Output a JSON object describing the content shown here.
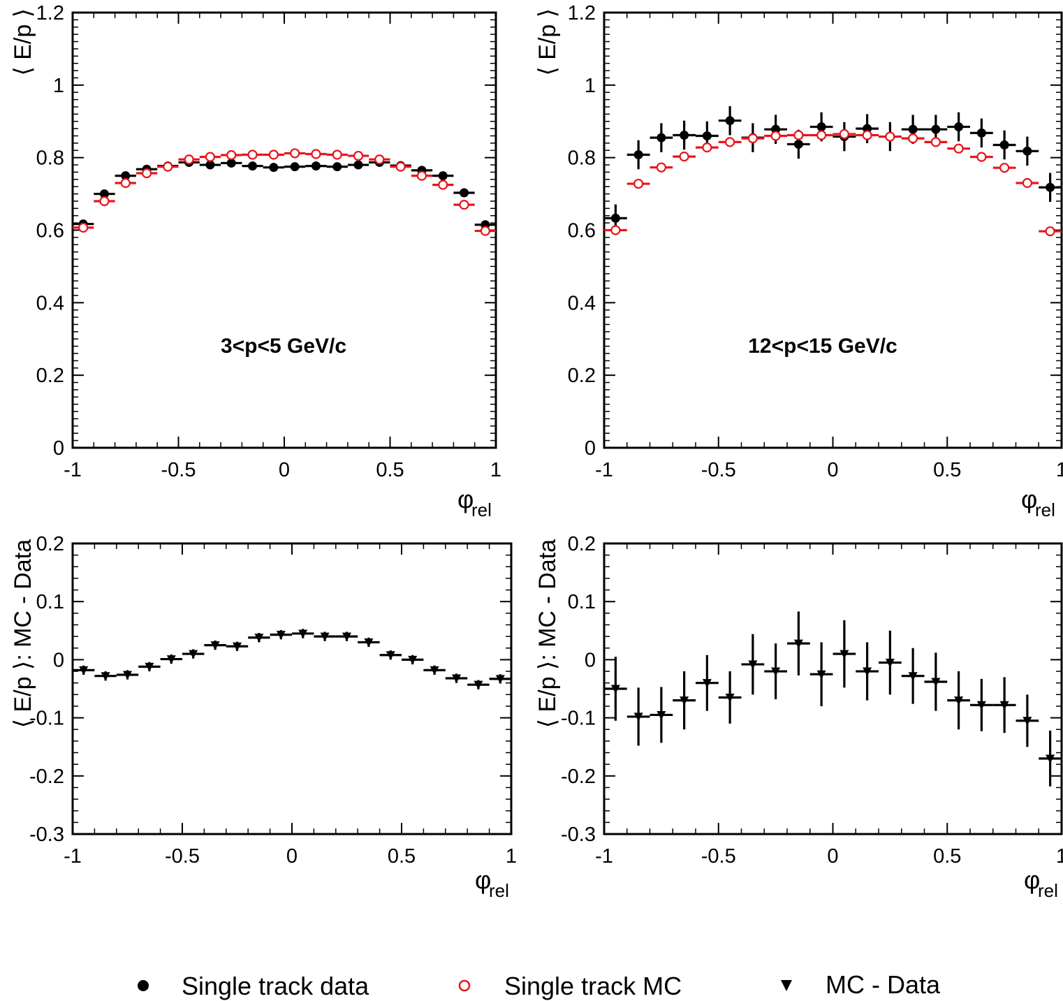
{
  "colors": {
    "data": "#000000",
    "mc": "#e8141c",
    "diff": "#000000"
  },
  "legend": [
    {
      "marker": "filled-circle",
      "label": "Single track data"
    },
    {
      "marker": "open-circle",
      "label": "Single track MC"
    },
    {
      "marker": "filled-triangle-down",
      "label": "MC - Data"
    }
  ],
  "chart_data": [
    {
      "type": "scatter",
      "panel": "top-left",
      "ylabel": "⟨ E/p ⟩",
      "xlabel": "φ",
      "xlabel_sub": "rel",
      "annotation": "3<p<5 GeV/c",
      "xlim": [
        -1,
        1
      ],
      "ylim": [
        0,
        1.2
      ],
      "xticks": [
        -1,
        -0.5,
        0,
        0.5,
        1
      ],
      "xtick_labels": [
        "-1",
        "-0.5",
        "0",
        "0.5",
        "1"
      ],
      "yticks": [
        0,
        0.2,
        0.4,
        0.6,
        0.8,
        1,
        1.2
      ],
      "ytick_labels": [
        "0",
        "0.2",
        "0.4",
        "0.6",
        "0.8",
        "1",
        "1.2"
      ],
      "x": [
        -0.95,
        -0.85,
        -0.75,
        -0.65,
        -0.55,
        -0.45,
        -0.35,
        -0.25,
        -0.15,
        -0.05,
        0.05,
        0.15,
        0.25,
        0.35,
        0.45,
        0.55,
        0.65,
        0.75,
        0.85,
        0.95
      ],
      "series": [
        {
          "marker": "filled-circle",
          "color": "#000000",
          "values": [
            0.617,
            0.7,
            0.75,
            0.768,
            0.777,
            0.787,
            0.78,
            0.785,
            0.777,
            0.773,
            0.775,
            0.777,
            0.775,
            0.78,
            0.787,
            0.778,
            0.765,
            0.75,
            0.703,
            0.615
          ],
          "errors": [
            0.005,
            0.005,
            0.005,
            0.005,
            0.005,
            0.005,
            0.005,
            0.005,
            0.005,
            0.005,
            0.005,
            0.005,
            0.005,
            0.005,
            0.005,
            0.005,
            0.005,
            0.005,
            0.005,
            0.005
          ]
        },
        {
          "marker": "open-circle",
          "color": "#e8141c",
          "values": [
            0.607,
            0.68,
            0.73,
            0.757,
            0.775,
            0.795,
            0.802,
            0.807,
            0.808,
            0.808,
            0.812,
            0.81,
            0.808,
            0.805,
            0.795,
            0.775,
            0.75,
            0.725,
            0.67,
            0.598
          ],
          "errors": [
            0.003,
            0.003,
            0.003,
            0.003,
            0.003,
            0.003,
            0.003,
            0.003,
            0.003,
            0.003,
            0.003,
            0.003,
            0.003,
            0.003,
            0.003,
            0.003,
            0.003,
            0.003,
            0.003,
            0.003
          ]
        }
      ]
    },
    {
      "type": "scatter",
      "panel": "top-right",
      "ylabel": "⟨ E/p ⟩",
      "xlabel": "φ",
      "xlabel_sub": "rel",
      "annotation": "12<p<15 GeV/c",
      "xlim": [
        -1,
        1
      ],
      "ylim": [
        0,
        1.2
      ],
      "xticks": [
        -1,
        -0.5,
        0,
        0.5,
        1
      ],
      "xtick_labels": [
        "-1",
        "-0.5",
        "0",
        "0.5",
        "1"
      ],
      "yticks": [
        0,
        0.2,
        0.4,
        0.6,
        0.8,
        1,
        1.2
      ],
      "ytick_labels": [
        "0",
        "0.2",
        "0.4",
        "0.6",
        "0.8",
        "1",
        "1.2"
      ],
      "x": [
        -0.95,
        -0.85,
        -0.75,
        -0.65,
        -0.55,
        -0.45,
        -0.35,
        -0.25,
        -0.15,
        -0.05,
        0.05,
        0.15,
        0.25,
        0.35,
        0.45,
        0.55,
        0.65,
        0.75,
        0.85,
        0.95
      ],
      "series": [
        {
          "marker": "filled-circle",
          "color": "#000000",
          "values": [
            0.633,
            0.808,
            0.855,
            0.862,
            0.86,
            0.902,
            0.855,
            0.878,
            0.837,
            0.885,
            0.858,
            0.88,
            0.858,
            0.878,
            0.878,
            0.885,
            0.868,
            0.835,
            0.818,
            0.718
          ],
          "errors": [
            0.038,
            0.04,
            0.04,
            0.04,
            0.04,
            0.04,
            0.04,
            0.04,
            0.04,
            0.04,
            0.04,
            0.04,
            0.04,
            0.04,
            0.04,
            0.04,
            0.04,
            0.04,
            0.04,
            0.04
          ]
        },
        {
          "marker": "open-circle",
          "color": "#e8141c",
          "values": [
            0.6,
            0.728,
            0.773,
            0.803,
            0.828,
            0.843,
            0.853,
            0.86,
            0.862,
            0.862,
            0.865,
            0.862,
            0.858,
            0.853,
            0.843,
            0.825,
            0.802,
            0.772,
            0.73,
            0.597
          ],
          "errors": [
            0.005,
            0.005,
            0.005,
            0.005,
            0.005,
            0.005,
            0.005,
            0.005,
            0.005,
            0.005,
            0.005,
            0.005,
            0.005,
            0.005,
            0.005,
            0.005,
            0.005,
            0.005,
            0.005,
            0.005
          ]
        }
      ]
    },
    {
      "type": "scatter",
      "panel": "bottom-left",
      "ylabel": "⟨ E/p ⟩: MC - Data",
      "xlabel": "φ",
      "xlabel_sub": "rel",
      "xlim": [
        -1,
        1
      ],
      "ylim": [
        -0.3,
        0.2
      ],
      "xticks": [
        -1,
        -0.5,
        0,
        0.5,
        1
      ],
      "xtick_labels": [
        "-1",
        "-0.5",
        "0",
        "0.5",
        "1"
      ],
      "yticks": [
        -0.3,
        -0.2,
        -0.1,
        0,
        0.1,
        0.2
      ],
      "ytick_labels": [
        "-0.3",
        "-0.2",
        "-0.1",
        "0",
        "0.1",
        "0.2"
      ],
      "x": [
        -0.95,
        -0.85,
        -0.75,
        -0.65,
        -0.55,
        -0.45,
        -0.35,
        -0.25,
        -0.15,
        -0.05,
        0.05,
        0.15,
        0.25,
        0.35,
        0.45,
        0.55,
        0.65,
        0.75,
        0.85,
        0.95
      ],
      "series": [
        {
          "marker": "filled-triangle-down",
          "color": "#000000",
          "values": [
            -0.018,
            -0.028,
            -0.026,
            -0.012,
            0.001,
            0.01,
            0.025,
            0.023,
            0.038,
            0.043,
            0.045,
            0.04,
            0.04,
            0.03,
            0.008,
            0.0,
            -0.018,
            -0.032,
            -0.043,
            -0.033
          ],
          "errors": [
            0.008,
            0.008,
            0.008,
            0.008,
            0.008,
            0.008,
            0.008,
            0.008,
            0.008,
            0.008,
            0.008,
            0.008,
            0.008,
            0.008,
            0.008,
            0.008,
            0.008,
            0.008,
            0.008,
            0.008
          ]
        }
      ]
    },
    {
      "type": "scatter",
      "panel": "bottom-right",
      "ylabel": "⟨ E/p ⟩: MC - Data",
      "xlabel": "φ",
      "xlabel_sub": "rel",
      "xlim": [
        -1,
        1
      ],
      "ylim": [
        -0.3,
        0.2
      ],
      "xticks": [
        -1,
        -0.5,
        0,
        0.5,
        1
      ],
      "xtick_labels": [
        "-1",
        "-0.5",
        "0",
        "0.5",
        "1"
      ],
      "yticks": [
        -0.3,
        -0.2,
        -0.1,
        0,
        0.1,
        0.2
      ],
      "ytick_labels": [
        "-0.3",
        "-0.2",
        "-0.1",
        "0",
        "0.1",
        "0.2"
      ],
      "x": [
        -0.95,
        -0.85,
        -0.75,
        -0.65,
        -0.55,
        -0.45,
        -0.35,
        -0.25,
        -0.15,
        -0.05,
        0.05,
        0.15,
        0.25,
        0.35,
        0.45,
        0.55,
        0.65,
        0.75,
        0.85,
        0.95
      ],
      "series": [
        {
          "marker": "filled-triangle-down",
          "color": "#000000",
          "values": [
            -0.05,
            -0.098,
            -0.095,
            -0.07,
            -0.04,
            -0.065,
            -0.008,
            -0.02,
            0.028,
            -0.025,
            0.01,
            -0.02,
            -0.005,
            -0.028,
            -0.038,
            -0.07,
            -0.078,
            -0.078,
            -0.105,
            -0.17
          ],
          "errors": [
            0.055,
            0.05,
            0.048,
            0.05,
            0.048,
            0.045,
            0.052,
            0.048,
            0.055,
            0.055,
            0.058,
            0.05,
            0.055,
            0.048,
            0.05,
            0.05,
            0.045,
            0.048,
            0.045,
            0.048
          ]
        }
      ]
    }
  ]
}
